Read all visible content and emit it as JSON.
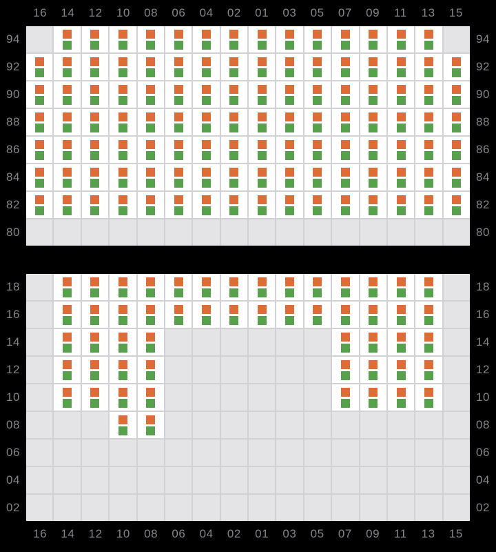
{
  "columns": [
    "16",
    "14",
    "12",
    "10",
    "08",
    "06",
    "04",
    "02",
    "01",
    "03",
    "05",
    "07",
    "09",
    "11",
    "13",
    "15"
  ],
  "panels": [
    {
      "name": "section-rows-94-80",
      "rows": [
        {
          "label": "94",
          "cells": [
            0,
            1,
            1,
            1,
            1,
            1,
            1,
            1,
            1,
            1,
            1,
            1,
            1,
            1,
            1,
            0
          ]
        },
        {
          "label": "92",
          "cells": [
            1,
            1,
            1,
            1,
            1,
            1,
            1,
            1,
            1,
            1,
            1,
            1,
            1,
            1,
            1,
            1
          ]
        },
        {
          "label": "90",
          "cells": [
            1,
            1,
            1,
            1,
            1,
            1,
            1,
            1,
            1,
            1,
            1,
            1,
            1,
            1,
            1,
            1
          ]
        },
        {
          "label": "88",
          "cells": [
            1,
            1,
            1,
            1,
            1,
            1,
            1,
            1,
            1,
            1,
            1,
            1,
            1,
            1,
            1,
            1
          ]
        },
        {
          "label": "86",
          "cells": [
            1,
            1,
            1,
            1,
            1,
            1,
            1,
            1,
            1,
            1,
            1,
            1,
            1,
            1,
            1,
            1
          ]
        },
        {
          "label": "84",
          "cells": [
            1,
            1,
            1,
            1,
            1,
            1,
            1,
            1,
            1,
            1,
            1,
            1,
            1,
            1,
            1,
            1
          ]
        },
        {
          "label": "82",
          "cells": [
            1,
            1,
            1,
            1,
            1,
            1,
            1,
            1,
            1,
            1,
            1,
            1,
            1,
            1,
            1,
            1
          ]
        },
        {
          "label": "80",
          "cells": [
            0,
            0,
            0,
            0,
            0,
            0,
            0,
            0,
            0,
            0,
            0,
            0,
            0,
            0,
            0,
            0
          ]
        }
      ]
    },
    {
      "name": "section-rows-18-02",
      "rows": [
        {
          "label": "18",
          "cells": [
            0,
            1,
            1,
            1,
            1,
            1,
            1,
            1,
            1,
            1,
            1,
            1,
            1,
            1,
            1,
            0
          ]
        },
        {
          "label": "16",
          "cells": [
            0,
            1,
            1,
            1,
            1,
            1,
            1,
            1,
            1,
            1,
            1,
            1,
            1,
            1,
            1,
            0
          ]
        },
        {
          "label": "14",
          "cells": [
            0,
            1,
            1,
            1,
            1,
            0,
            0,
            0,
            0,
            0,
            0,
            1,
            1,
            1,
            1,
            0
          ]
        },
        {
          "label": "12",
          "cells": [
            0,
            1,
            1,
            1,
            1,
            0,
            0,
            0,
            0,
            0,
            0,
            1,
            1,
            1,
            1,
            0
          ]
        },
        {
          "label": "10",
          "cells": [
            0,
            1,
            1,
            1,
            1,
            0,
            0,
            0,
            0,
            0,
            0,
            1,
            1,
            1,
            1,
            0
          ]
        },
        {
          "label": "08",
          "cells": [
            0,
            0,
            0,
            1,
            1,
            0,
            0,
            0,
            0,
            0,
            0,
            0,
            0,
            0,
            0,
            0
          ]
        },
        {
          "label": "06",
          "cells": [
            0,
            0,
            0,
            0,
            0,
            0,
            0,
            0,
            0,
            0,
            0,
            0,
            0,
            0,
            0,
            0
          ]
        },
        {
          "label": "04",
          "cells": [
            0,
            0,
            0,
            0,
            0,
            0,
            0,
            0,
            0,
            0,
            0,
            0,
            0,
            0,
            0,
            0
          ]
        },
        {
          "label": "02",
          "cells": [
            0,
            0,
            0,
            0,
            0,
            0,
            0,
            0,
            0,
            0,
            0,
            0,
            0,
            0,
            0,
            0
          ]
        }
      ]
    }
  ],
  "cell_markers": {
    "top": "orange-square",
    "bottom": "green-square"
  },
  "colors": {
    "background": "#000000",
    "label_text": "#85858b",
    "cell_available": "#ffffff",
    "cell_empty": "#e4e4e7",
    "grid_line": "#d2d2d6",
    "marker_top": "#dd6c37",
    "marker_bottom": "#58a14c"
  }
}
